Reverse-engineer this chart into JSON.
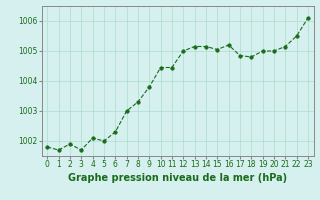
{
  "x": [
    0,
    1,
    2,
    3,
    4,
    5,
    6,
    7,
    8,
    9,
    10,
    11,
    12,
    13,
    14,
    15,
    16,
    17,
    18,
    19,
    20,
    21,
    22,
    23
  ],
  "y": [
    1001.8,
    1001.7,
    1001.9,
    1001.7,
    1002.1,
    1002.0,
    1002.3,
    1003.0,
    1003.3,
    1003.8,
    1004.45,
    1004.45,
    1005.0,
    1005.15,
    1005.15,
    1005.05,
    1005.2,
    1004.85,
    1004.8,
    1005.0,
    1005.0,
    1005.15,
    1005.5,
    1006.1
  ],
  "line_color": "#1a6b1a",
  "marker_color": "#1a6b1a",
  "bg_color": "#d6f0f0",
  "grid_color": "#aaddcc",
  "title": "Graphe pression niveau de la mer (hPa)",
  "title_color": "#1a6b1a",
  "ylim_min": 1001.5,
  "ylim_max": 1006.5,
  "xlim_min": -0.5,
  "xlim_max": 23.5,
  "yticks": [
    1002,
    1003,
    1004,
    1005,
    1006
  ],
  "xticks": [
    0,
    1,
    2,
    3,
    4,
    5,
    6,
    7,
    8,
    9,
    10,
    11,
    12,
    13,
    14,
    15,
    16,
    17,
    18,
    19,
    20,
    21,
    22,
    23
  ],
  "tick_fontsize": 5.5,
  "title_fontsize": 7,
  "linewidth": 0.8,
  "markersize": 2.5
}
